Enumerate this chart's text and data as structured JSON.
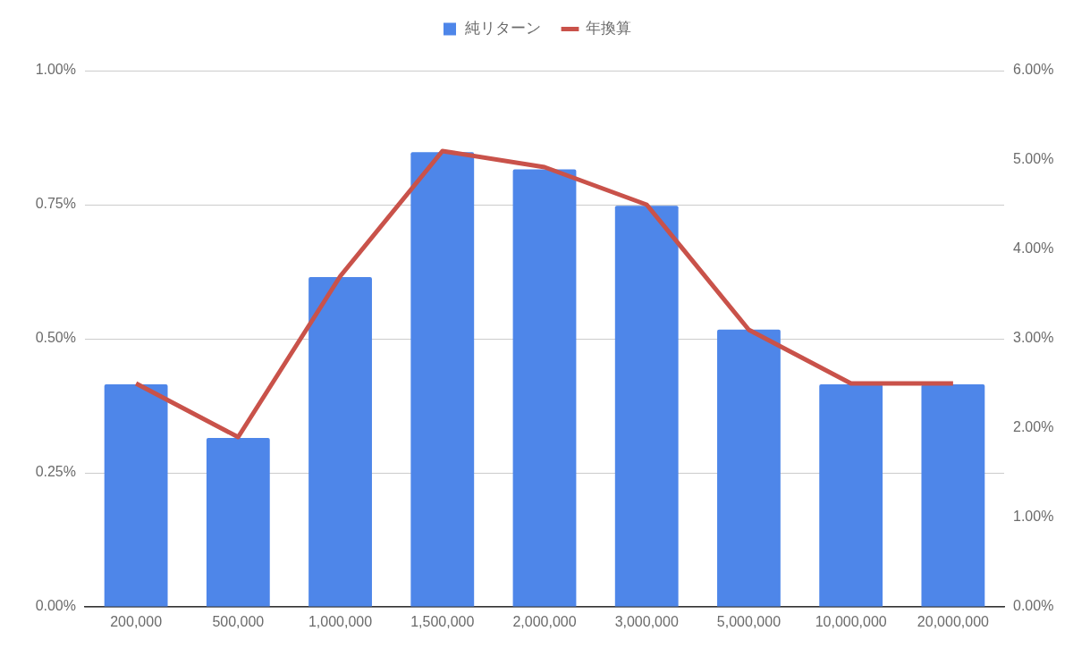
{
  "chart_data": {
    "type": "bar",
    "categories": [
      "200,000",
      "500,000",
      "1,000,000",
      "1,500,000",
      "2,000,000",
      "3,000,000",
      "5,000,000",
      "10,000,000",
      "20,000,000"
    ],
    "series": [
      {
        "name": "純リターン",
        "color": "#4e86e9",
        "values": [
          0.415,
          0.315,
          0.615,
          0.848,
          0.816,
          0.748,
          0.517,
          0.415,
          0.415
        ]
      },
      {
        "name": "年換算",
        "type": "line",
        "axis": "y2",
        "color": "#c9524a",
        "values": [
          2.5,
          1.9,
          3.7,
          5.1,
          4.92,
          4.5,
          3.1,
          2.5,
          2.5
        ]
      }
    ],
    "ylim": [
      0,
      1
    ],
    "yticks": [
      {
        "value": 0,
        "label": "0.00%"
      },
      {
        "value": 0.25,
        "label": "0.25%"
      },
      {
        "value": 0.5,
        "label": "0.50%"
      },
      {
        "value": 0.75,
        "label": "0.75%"
      },
      {
        "value": 1,
        "label": "1.00%"
      }
    ],
    "y2lim": [
      0,
      6
    ],
    "y2ticks": [
      {
        "value": 0,
        "label": "0.00%"
      },
      {
        "value": 1,
        "label": "1.00%"
      },
      {
        "value": 2,
        "label": "2.00%"
      },
      {
        "value": 3,
        "label": "3.00%"
      },
      {
        "value": 4,
        "label": "4.00%"
      },
      {
        "value": 5,
        "label": "5.00%"
      },
      {
        "value": 6,
        "label": "6.00%"
      }
    ],
    "grid": "y",
    "legend": "top",
    "marker": "none",
    "line_style": "solid"
  }
}
